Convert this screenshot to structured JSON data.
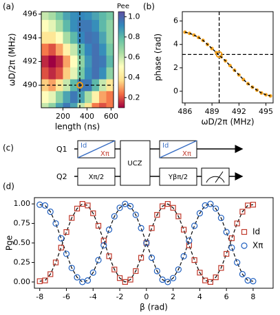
{
  "chart_data": [
    {
      "type": "heatmap",
      "panel_label": "(a)",
      "xlabel": "length (ns)",
      "ylabel": "ωD/2π (MHz)",
      "x": [
        50,
        110,
        170,
        230,
        290,
        350,
        410,
        470,
        530,
        590
      ],
      "y": [
        496,
        495,
        494,
        493,
        492,
        491,
        490,
        489,
        488
      ],
      "values": [
        [
          0.6,
          0.65,
          0.75,
          0.85,
          0.9,
          0.92,
          0.9,
          0.85,
          0.8,
          0.75
        ],
        [
          0.5,
          0.55,
          0.65,
          0.8,
          0.9,
          0.95,
          0.95,
          0.9,
          0.8,
          0.7
        ],
        [
          0.4,
          0.4,
          0.5,
          0.65,
          0.8,
          0.92,
          0.97,
          0.95,
          0.85,
          0.7
        ],
        [
          0.25,
          0.2,
          0.3,
          0.45,
          0.6,
          0.8,
          0.92,
          0.97,
          0.9,
          0.75
        ],
        [
          0.15,
          0.1,
          0.15,
          0.3,
          0.5,
          0.7,
          0.88,
          0.97,
          0.95,
          0.8
        ],
        [
          0.2,
          0.15,
          0.2,
          0.35,
          0.55,
          0.75,
          0.9,
          0.97,
          0.9,
          0.7
        ],
        [
          0.35,
          0.3,
          0.4,
          0.6,
          0.8,
          0.95,
          0.95,
          0.8,
          0.6,
          0.4
        ],
        [
          0.5,
          0.55,
          0.7,
          0.85,
          0.95,
          0.85,
          0.65,
          0.45,
          0.3,
          0.25
        ],
        [
          0.6,
          0.7,
          0.85,
          0.95,
          0.85,
          0.6,
          0.4,
          0.25,
          0.2,
          0.25
        ]
      ],
      "xlim": [
        20,
        620
      ],
      "ylim": [
        488.1,
        496.2
      ],
      "xticks": [
        200,
        400,
        600
      ],
      "yticks": [
        490,
        492,
        494,
        496
      ],
      "colorbar_label": "Pee",
      "clim": [
        0.1,
        1.05
      ],
      "cticks": [
        0.2,
        0.4,
        0.6,
        0.8,
        {
          "value": 1,
          "label": "1.0"
        }
      ],
      "colormap": [
        "#9e0142",
        "#f46d43",
        "#fee08b",
        "#ffffbf",
        "#abdda4",
        "#66c2a5",
        "#3288bd",
        "#5e4fa2"
      ],
      "vline": 340,
      "hline": 490,
      "marker": {
        "x": 340,
        "y": 490
      },
      "marker_color": "#f39c12"
    },
    {
      "type": "line",
      "panel_label": "(b)",
      "xlabel": "ωD/2π (MHz)",
      "ylabel": "phase (rad)",
      "x": [
        486,
        486.5,
        487,
        487.5,
        488,
        488.5,
        489,
        489.5,
        490,
        490.5,
        491,
        491.5,
        492,
        492.5,
        493,
        493.5,
        494,
        494.5,
        495,
        495.5
      ],
      "series": [
        {
          "color": "#f5a623",
          "values": [
            5.05,
            4.95,
            4.8,
            4.6,
            4.35,
            4.0,
            3.65,
            3.3,
            2.95,
            2.6,
            2.2,
            1.8,
            1.4,
            1.0,
            0.65,
            0.35,
            0.1,
            -0.15,
            -0.3,
            -0.4
          ]
        }
      ],
      "fit_color": "#000000",
      "xlim": [
        485.7,
        495.8
      ],
      "ylim": [
        -1,
        6.8
      ],
      "xticks": [
        486,
        489,
        492,
        495
      ],
      "yticks": [
        0,
        2,
        4,
        6
      ],
      "vline": 489.8,
      "hline": 3.14,
      "marker": {
        "x": 489.8,
        "y": 3.14
      },
      "marker_color": "#f39c12"
    },
    {
      "type": "scatter",
      "panel_label": "(d)",
      "xlabel": "β (rad)",
      "ylabel": "Pge",
      "x": [
        -8,
        -7.6,
        -7.2,
        -6.8,
        -6.4,
        -6,
        -5.6,
        -5.2,
        -4.8,
        -4.4,
        -4,
        -3.6,
        -3.2,
        -2.8,
        -2.4,
        -2,
        -1.6,
        -1.2,
        -0.8,
        -0.4,
        0,
        0.4,
        0.8,
        1.2,
        1.6,
        2,
        2.4,
        2.8,
        3.2,
        3.6,
        4,
        4.4,
        4.8,
        5.2,
        5.6,
        6,
        6.4,
        6.8,
        7.2,
        7.6,
        8
      ],
      "series": [
        {
          "name": "Id",
          "color": "#c0392b",
          "marker": "square",
          "values": [
            0.01,
            0.02,
            0.1,
            0.25,
            0.44,
            0.64,
            0.82,
            0.94,
            1.0,
            0.98,
            0.88,
            0.72,
            0.53,
            0.33,
            0.16,
            0.05,
            0.0,
            0.03,
            0.14,
            0.31,
            0.5,
            0.69,
            0.86,
            0.97,
            1.0,
            0.95,
            0.84,
            0.67,
            0.47,
            0.28,
            0.12,
            0.02,
            0.0,
            0.06,
            0.18,
            0.36,
            0.56,
            0.75,
            0.9,
            0.98,
            0.99
          ]
        },
        {
          "name": "Xπ",
          "color": "#1f5fbf",
          "marker": "circle",
          "values": [
            0.99,
            0.98,
            0.9,
            0.75,
            0.56,
            0.36,
            0.18,
            0.06,
            0.0,
            0.02,
            0.12,
            0.28,
            0.47,
            0.67,
            0.84,
            0.95,
            1.0,
            0.97,
            0.86,
            0.69,
            0.5,
            0.31,
            0.14,
            0.03,
            0.0,
            0.05,
            0.16,
            0.33,
            0.53,
            0.72,
            0.88,
            0.98,
            1.0,
            0.94,
            0.82,
            0.64,
            0.44,
            0.25,
            0.1,
            0.02,
            0.01
          ]
        }
      ],
      "fit_color": "#000000",
      "legend": "right",
      "xlim": [
        -8.4,
        9.5
      ],
      "ylim": [
        -0.08,
        1.08
      ],
      "xticks": [
        -8,
        -6,
        -4,
        -2,
        0,
        2,
        4,
        6,
        8
      ],
      "yticks": [
        {
          "value": 0,
          "label": "0.00"
        },
        {
          "value": 0.25,
          "label": "0.25"
        },
        {
          "value": 0.5,
          "label": "0.50"
        },
        {
          "value": 0.75,
          "label": "0.75"
        },
        {
          "value": 1,
          "label": "1.00"
        }
      ]
    }
  ],
  "circuit": {
    "panel_label": "(c)",
    "qubits": [
      "Q1",
      "Q2"
    ],
    "gates": [
      "Id",
      "Xπ",
      "Xπ/2",
      "UCZ",
      "Id",
      "Xπ",
      "Yβπ/2"
    ]
  }
}
